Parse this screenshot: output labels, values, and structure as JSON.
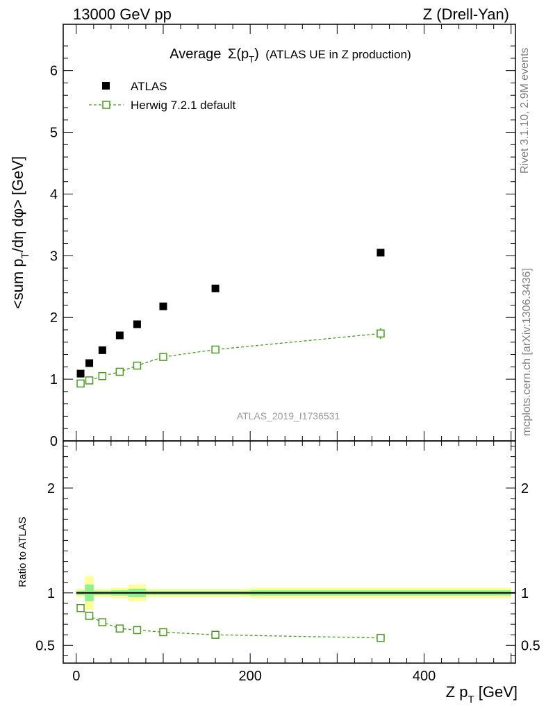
{
  "header": {
    "energy": "13000 GeV pp",
    "process": "Z (Drell-Yan)"
  },
  "side": {
    "rivet": "Rivet 3.1.10,  2.9M events",
    "mcplots": "mcplots.cern.ch [arXiv:1306.3436]"
  },
  "colors": {
    "data": "#000000",
    "mc": "#4a9a1f",
    "band_outer": "#ffff99",
    "band_inner": "#8ff08f"
  },
  "chart_data": [
    {
      "type": "scatter",
      "title": "Average Σ(pT) (ATLAS UE in Z production)",
      "title_main": "Average",
      "title_sigma": "Σ(p",
      "title_sub": "T",
      "title_close": ")",
      "title_rest": "(ATLAS UE in Z production)",
      "watermark": "ATLAS_2019_I1736531",
      "ylabel": "<sum p_T/dη dφ> [GeV]",
      "ylabel_parts": {
        "a": "<sum p",
        "sub": "T",
        "b": "/dη dφ> [GeV]"
      },
      "xlim": [
        -15,
        505
      ],
      "ylim": [
        0,
        6.75
      ],
      "yticks": [
        "0",
        "1",
        "2",
        "3",
        "4",
        "5",
        "6"
      ],
      "legend": {
        "data_label": "ATLAS",
        "mc_label": "Herwig 7.2.1 default",
        "placement": "top-left"
      },
      "series": [
        {
          "name": "ATLAS",
          "x": [
            5,
            15,
            30,
            50,
            70,
            100,
            160,
            350
          ],
          "y": [
            1.09,
            1.26,
            1.47,
            1.71,
            1.89,
            2.18,
            2.47,
            3.05
          ]
        },
        {
          "name": "Herwig 7.2.1 default",
          "x": [
            5,
            15,
            30,
            50,
            70,
            100,
            160,
            350
          ],
          "y": [
            0.93,
            0.98,
            1.05,
            1.12,
            1.22,
            1.36,
            1.48,
            1.74
          ],
          "yerr": [
            0.02,
            0.02,
            0.02,
            0.02,
            0.02,
            0.03,
            0.03,
            0.09
          ]
        }
      ]
    },
    {
      "type": "scatter",
      "ylabel": "Ratio to ATLAS",
      "xlabel": "Z p_T [GeV]",
      "xlabel_parts": {
        "a": "Z p",
        "sub": "T",
        "b": " [GeV]"
      },
      "xlim": [
        -15,
        505
      ],
      "ylim": [
        0.33,
        2.45
      ],
      "xticks": [
        "0",
        "200",
        "400"
      ],
      "yticks": [
        "0.5",
        "1",
        "2"
      ],
      "reference_line": 1,
      "bands": [
        {
          "x0": 0,
          "x1": 10,
          "outer": 0.04,
          "inner": 0.02
        },
        {
          "x0": 10,
          "x1": 20,
          "outer": 0.16,
          "inner": 0.08
        },
        {
          "x0": 20,
          "x1": 40,
          "outer": 0.04,
          "inner": 0.02
        },
        {
          "x0": 40,
          "x1": 60,
          "outer": 0.05,
          "inner": 0.025
        },
        {
          "x0": 60,
          "x1": 80,
          "outer": 0.08,
          "inner": 0.04
        },
        {
          "x0": 80,
          "x1": 120,
          "outer": 0.04,
          "inner": 0.02
        },
        {
          "x0": 120,
          "x1": 200,
          "outer": 0.04,
          "inner": 0.02
        },
        {
          "x0": 200,
          "x1": 500,
          "outer": 0.05,
          "inner": 0.025
        }
      ],
      "series": [
        {
          "name": "Herwig 7.2.1 default / ATLAS",
          "x": [
            5,
            15,
            30,
            50,
            70,
            100,
            160,
            350
          ],
          "y": [
            0.855,
            0.78,
            0.72,
            0.66,
            0.645,
            0.625,
            0.6,
            0.57
          ],
          "yerr": [
            0.015,
            0.015,
            0.015,
            0.015,
            0.015,
            0.015,
            0.015,
            0.03
          ]
        }
      ]
    }
  ]
}
